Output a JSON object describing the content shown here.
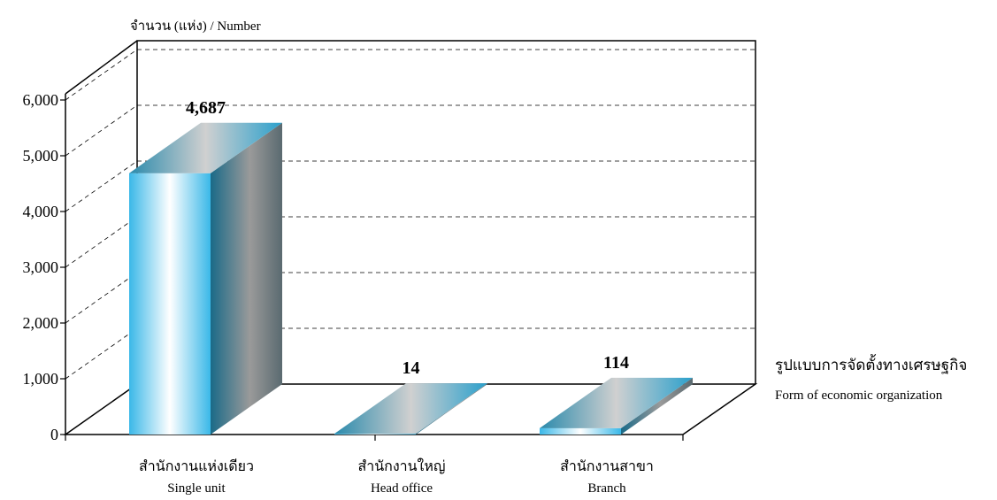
{
  "chart_data": {
    "type": "bar",
    "ylabel": "จำนวน (แห่ง)  /  Number",
    "xlabel_th": "รูปแบบการจัดตั้งทางเศรษฐกิจ",
    "xlabel_en": "Form of  economic organization",
    "categories": [
      {
        "th": "สำนักงานแห่งเดียว",
        "en": "Single unit"
      },
      {
        "th": "สำนักงานใหญ่",
        "en": "Head office"
      },
      {
        "th": "สำนักงานสาขา",
        "en": "Branch"
      }
    ],
    "values": [
      4687,
      14,
      114
    ],
    "value_labels": [
      "4,687",
      "14",
      "114"
    ],
    "ylim": [
      0,
      6000
    ],
    "yticks": [
      0,
      1000,
      2000,
      3000,
      4000,
      5000,
      6000
    ],
    "ytick_labels": [
      "0",
      "1,000",
      "2,000",
      "3,000",
      "4,000",
      "5,000",
      "6,000"
    ],
    "grid": true,
    "style": "3d-bar",
    "colors": {
      "bar_light": "#5cc8ee",
      "bar_dark": "#1d6a86",
      "top": "#b8b8b8",
      "grid": "#000000"
    }
  }
}
